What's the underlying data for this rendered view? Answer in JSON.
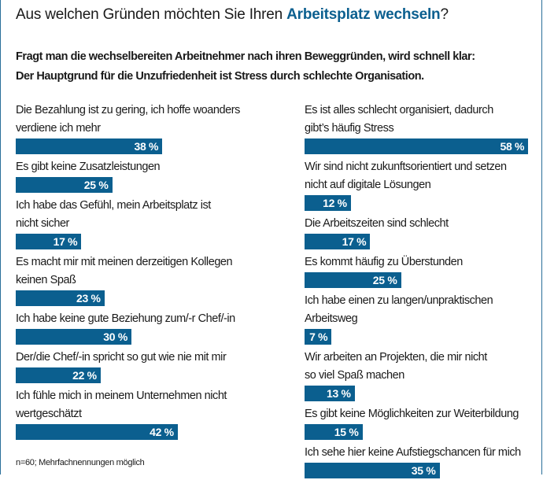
{
  "title_plain": "Aus welchen Gründen möchten Sie Ihren ",
  "title_highlight": "Arbeitsplatz wechseln",
  "title_end": "?",
  "subtitle_line1": "Fragt man die wechselbereiten Arbeitnehmer nach ihren Beweggründen, wird schnell klar:",
  "subtitle_line2": "Der Hauptgrund für die Unzufriedenheit ist Stress durch schlechte Organisation.",
  "footnote": "n=60; Mehrfachnennungen möglich",
  "colors": {
    "bar": "#0b5f8f",
    "highlight": "#0b5f8f"
  },
  "chart_data": {
    "type": "bar",
    "orientation": "horizontal",
    "unit": "%",
    "xlim": [
      0,
      100
    ],
    "grid": false,
    "columns": [
      {
        "items": [
          {
            "label": [
              "Die Bezahlung ist zu gering, ich hoffe woanders",
              "verdiene ich mehr"
            ],
            "value": 38,
            "value_label": "38 %"
          },
          {
            "label": [
              "Es gibt keine Zusatzleistungen"
            ],
            "value": 25,
            "value_label": "25 %"
          },
          {
            "label": [
              "Ich habe das Gefühl, mein Arbeitsplatz ist",
              "nicht sicher"
            ],
            "value": 17,
            "value_label": "17 %"
          },
          {
            "label": [
              "Es macht mir mit meinen derzeitigen Kollegen",
              "keinen Spaß"
            ],
            "value": 23,
            "value_label": "23 %"
          },
          {
            "label": [
              "Ich habe keine gute Beziehung zum/-r Chef/-in"
            ],
            "value": 30,
            "value_label": "30 %"
          },
          {
            "label": [
              "Der/die Chef/-in spricht so gut wie nie mit mir"
            ],
            "value": 22,
            "value_label": "22 %"
          },
          {
            "label": [
              "Ich fühle mich in meinem Unternehmen nicht",
              "wertgeschätzt"
            ],
            "value": 42,
            "value_label": "42 %"
          }
        ]
      },
      {
        "items": [
          {
            "label": [
              "Es ist alles schlecht organisiert, dadurch",
              "gibt’s häufig Stress"
            ],
            "value": 58,
            "value_label": "58 %"
          },
          {
            "label": [
              "Wir sind nicht zukunftsorientiert und setzen",
              "nicht auf digitale Lösungen"
            ],
            "value": 12,
            "value_label": "12 %"
          },
          {
            "label": [
              "Die Arbeitszeiten sind schlecht"
            ],
            "value": 17,
            "value_label": "17 %"
          },
          {
            "label": [
              "Es kommt häufig zu Überstunden"
            ],
            "value": 25,
            "value_label": "25 %"
          },
          {
            "label": [
              "Ich habe einen zu langen/unpraktischen",
              "Arbeitsweg"
            ],
            "value": 7,
            "value_label": "7 %"
          },
          {
            "label": [
              "Wir arbeiten an Projekten, die mir nicht",
              "so viel Spaß machen"
            ],
            "value": 13,
            "value_label": "13 %"
          },
          {
            "label": [
              "Es gibt keine Möglichkeiten zur Weiterbildung"
            ],
            "value": 15,
            "value_label": "15 %"
          },
          {
            "label": [
              "Ich sehe hier keine Aufstiegschancen für mich"
            ],
            "value": 35,
            "value_label": "35 %"
          }
        ]
      }
    ]
  }
}
